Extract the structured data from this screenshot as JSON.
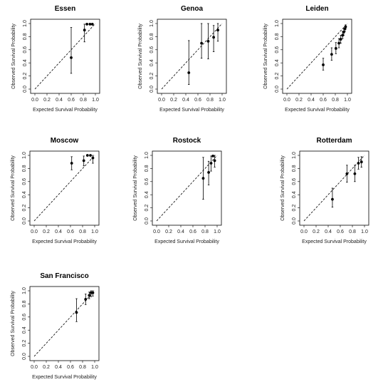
{
  "chart_data": [
    {
      "type": "scatter",
      "title": "Essen",
      "xlabel": "Expected Survival Probability",
      "ylabel": "Observed Survival Probability",
      "xlim": [
        0,
        1
      ],
      "ylim": [
        0,
        1
      ],
      "xticks": [
        "0.0",
        "0.2",
        "0.4",
        "0.6",
        "0.8",
        "1.0"
      ],
      "yticks": [
        "0.0",
        "0.2",
        "0.4",
        "0.6",
        "0.8",
        "1.0"
      ],
      "reference_line": "diagonal dashed",
      "points": [
        {
          "x": 0.6,
          "y": 0.48,
          "lower": 0.24,
          "upper": 0.94
        },
        {
          "x": 0.82,
          "y": 0.9,
          "lower": 0.72,
          "upper": 0.99
        },
        {
          "x": 0.86,
          "y": 0.99,
          "lower": 0.99,
          "upper": 0.99
        },
        {
          "x": 0.91,
          "y": 0.99,
          "lower": 0.99,
          "upper": 0.99
        },
        {
          "x": 0.95,
          "y": 0.99,
          "lower": 0.99,
          "upper": 0.99
        }
      ]
    },
    {
      "type": "scatter",
      "title": "Genoa",
      "xlabel": "Expected Survival Probability",
      "ylabel": "Observed Survival Probability",
      "xlim": [
        0,
        1
      ],
      "ylim": [
        0,
        1
      ],
      "xticks": [
        "0.0",
        "0.2",
        "0.4",
        "0.6",
        "0.8",
        "1.0"
      ],
      "yticks": [
        "0.0",
        "0.2",
        "0.4",
        "0.6",
        "0.8",
        "1.0"
      ],
      "reference_line": "diagonal dashed",
      "points": [
        {
          "x": 0.45,
          "y": 0.25,
          "lower": 0.07,
          "upper": 0.74
        },
        {
          "x": 0.66,
          "y": 0.7,
          "lower": 0.47,
          "upper": 1.0
        },
        {
          "x": 0.77,
          "y": 0.73,
          "lower": 0.46,
          "upper": 1.0
        },
        {
          "x": 0.86,
          "y": 0.79,
          "lower": 0.57,
          "upper": 0.97
        },
        {
          "x": 0.93,
          "y": 0.9,
          "lower": 0.73,
          "upper": 1.0
        }
      ]
    },
    {
      "type": "scatter",
      "title": "Leiden",
      "xlabel": "Expected Survival Probability",
      "ylabel": "Observed Survival Probability",
      "xlim": [
        0,
        1
      ],
      "ylim": [
        0,
        1
      ],
      "xticks": [
        "0.0",
        "0.2",
        "0.4",
        "0.6",
        "0.8",
        "1.0"
      ],
      "yticks": [
        "0.0",
        "0.2",
        "0.4",
        "0.6",
        "0.8",
        "1.0"
      ],
      "reference_line": "diagonal dashed",
      "points": [
        {
          "x": 0.6,
          "y": 0.37,
          "lower": 0.29,
          "upper": 0.47
        },
        {
          "x": 0.74,
          "y": 0.53,
          "lower": 0.44,
          "upper": 0.63
        },
        {
          "x": 0.81,
          "y": 0.62,
          "lower": 0.54,
          "upper": 0.71
        },
        {
          "x": 0.86,
          "y": 0.7,
          "lower": 0.63,
          "upper": 0.77
        },
        {
          "x": 0.89,
          "y": 0.76,
          "lower": 0.7,
          "upper": 0.82
        },
        {
          "x": 0.92,
          "y": 0.82,
          "lower": 0.77,
          "upper": 0.88
        },
        {
          "x": 0.94,
          "y": 0.87,
          "lower": 0.82,
          "upper": 0.92
        },
        {
          "x": 0.96,
          "y": 0.92,
          "lower": 0.88,
          "upper": 0.96
        },
        {
          "x": 0.97,
          "y": 0.95,
          "lower": 0.92,
          "upper": 0.98
        }
      ]
    },
    {
      "type": "scatter",
      "title": "Moscow",
      "xlabel": "Expected Survival Probability",
      "ylabel": "Observed Survival Probability",
      "xlim": [
        0,
        1
      ],
      "ylim": [
        0,
        1
      ],
      "xticks": [
        "0.0",
        "0.2",
        "0.4",
        "0.6",
        "0.8",
        "1.0"
      ],
      "yticks": [
        "0.0",
        "0.2",
        "0.4",
        "0.6",
        "0.8",
        "1.0"
      ],
      "reference_line": "diagonal dashed",
      "points": [
        {
          "x": 0.62,
          "y": 0.88,
          "lower": 0.78,
          "upper": 0.98
        },
        {
          "x": 0.82,
          "y": 0.92,
          "lower": 0.84,
          "upper": 0.99
        },
        {
          "x": 0.88,
          "y": 1.0,
          "lower": 1.0,
          "upper": 1.0
        },
        {
          "x": 0.93,
          "y": 1.0,
          "lower": 1.0,
          "upper": 1.0
        },
        {
          "x": 0.97,
          "y": 0.96,
          "lower": 0.88,
          "upper": 1.0
        }
      ]
    },
    {
      "type": "scatter",
      "title": "Rostock",
      "xlabel": "Expected Survival Probability",
      "ylabel": "Observed Survival Probability",
      "xlim": [
        0,
        1
      ],
      "ylim": [
        0,
        1
      ],
      "xticks": [
        "0.0",
        "0.2",
        "0.4",
        "0.6",
        "0.8",
        "1.0"
      ],
      "yticks": [
        "0.0",
        "0.2",
        "0.4",
        "0.6",
        "0.8",
        "1.0"
      ],
      "reference_line": "diagonal dashed",
      "points": [
        {
          "x": 0.77,
          "y": 0.65,
          "lower": 0.33,
          "upper": 0.97
        },
        {
          "x": 0.86,
          "y": 0.74,
          "lower": 0.55,
          "upper": 0.91
        },
        {
          "x": 0.9,
          "y": 0.88,
          "lower": 0.76,
          "upper": 0.99
        },
        {
          "x": 0.93,
          "y": 0.99,
          "lower": 0.99,
          "upper": 0.99
        },
        {
          "x": 0.96,
          "y": 0.92,
          "lower": 0.82,
          "upper": 1.0
        }
      ]
    },
    {
      "type": "scatter",
      "title": "Rotterdam",
      "xlabel": "Expected Survival Probability",
      "ylabel": "Observed Survival Probability",
      "xlim": [
        0,
        1
      ],
      "ylim": [
        0,
        1
      ],
      "xticks": [
        "0.0",
        "0.2",
        "0.4",
        "0.6",
        "0.8",
        "1.0"
      ],
      "yticks": [
        "0.0",
        "0.2",
        "0.4",
        "0.6",
        "0.8",
        "1.0"
      ],
      "reference_line": "diagonal dashed",
      "points": [
        {
          "x": 0.47,
          "y": 0.33,
          "lower": 0.21,
          "upper": 0.5
        },
        {
          "x": 0.71,
          "y": 0.72,
          "lower": 0.59,
          "upper": 0.85
        },
        {
          "x": 0.84,
          "y": 0.72,
          "lower": 0.6,
          "upper": 0.85
        },
        {
          "x": 0.9,
          "y": 0.88,
          "lower": 0.79,
          "upper": 0.97
        },
        {
          "x": 0.95,
          "y": 0.9,
          "lower": 0.82,
          "upper": 0.98
        }
      ]
    },
    {
      "type": "scatter",
      "title": "San Francisco",
      "xlabel": "Expected Survival Probability",
      "ylabel": "Observed Survival Probability",
      "xlim": [
        0,
        1
      ],
      "ylim": [
        0,
        1
      ],
      "xticks": [
        "0.0",
        "0.2",
        "0.4",
        "0.6",
        "0.8",
        "1.0"
      ],
      "yticks": [
        "0.0",
        "0.2",
        "0.4",
        "0.6",
        "0.8",
        "1.0"
      ],
      "reference_line": "diagonal dashed",
      "points": [
        {
          "x": 0.7,
          "y": 0.67,
          "lower": 0.53,
          "upper": 0.88
        },
        {
          "x": 0.85,
          "y": 0.87,
          "lower": 0.79,
          "upper": 0.95
        },
        {
          "x": 0.91,
          "y": 0.93,
          "lower": 0.88,
          "upper": 0.98
        },
        {
          "x": 0.94,
          "y": 0.97,
          "lower": 0.91,
          "upper": 1.0
        },
        {
          "x": 0.97,
          "y": 0.97,
          "lower": 0.92,
          "upper": 1.0
        }
      ]
    }
  ]
}
